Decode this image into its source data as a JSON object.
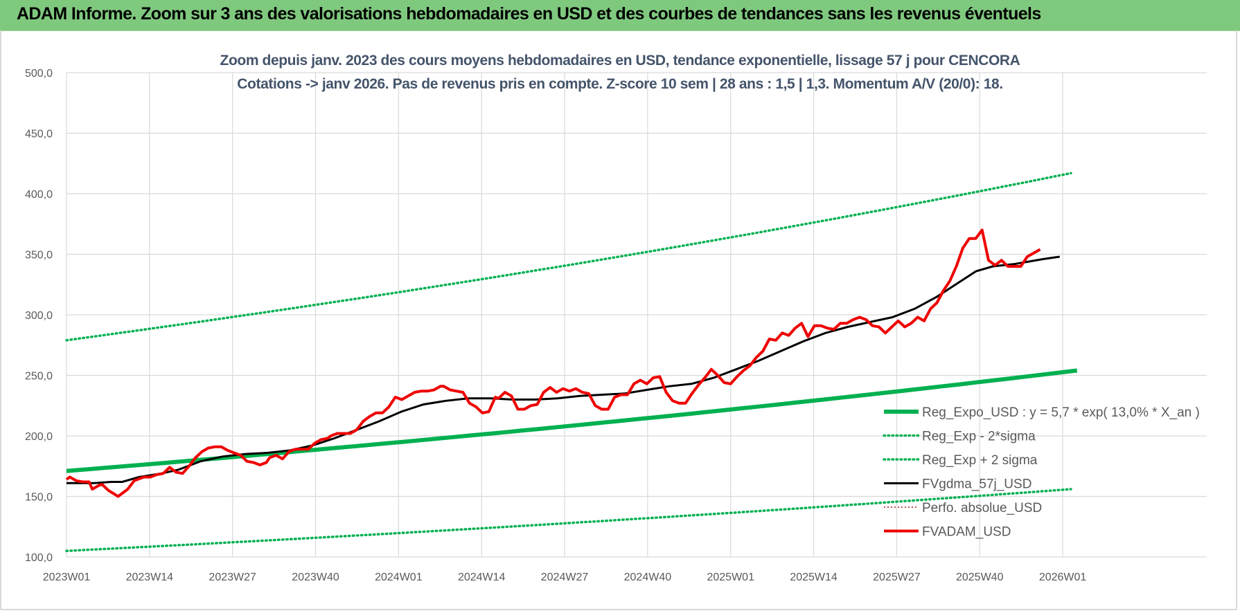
{
  "banner": {
    "text": "ADAM Informe. Zoom sur 3 ans des valorisations hebdomadaires en USD et des courbes de tendances sans les revenus éventuels"
  },
  "colors": {
    "banner_bg": "#7fc97f",
    "regexpo": "#00b050",
    "bands": "#00b050",
    "fvgdma": "#000000",
    "perfo": "#c0504d",
    "fvadam": "#ee0000"
  },
  "chart_data": {
    "type": "line",
    "title": [
      "Zoom depuis janv. 2023 des cours moyens hebdomadaires en USD, tendance exponentielle, lissage 57 j pour CENCORA",
      "Cotations -> janv 2026. Pas de revenus pris en compte. Z-score 10 sem  | 28 ans : 1,5 | 1,3. Momentum A/V (20/0): 18."
    ],
    "x_tick_labels": [
      "2023W01",
      "2023W14",
      "2023W27",
      "2023W40",
      "2024W01",
      "2024W14",
      "2024W27",
      "2024W40",
      "2025W01",
      "2025W14",
      "2025W27",
      "2025W40",
      "2026W01"
    ],
    "x_range_weeks": [
      0,
      164
    ],
    "y_tick_labels": [
      "100,0",
      "150,0",
      "200,0",
      "250,0",
      "300,0",
      "350,0",
      "400,0",
      "450,0",
      "500,0"
    ],
    "ylim": [
      100,
      500
    ],
    "legend": [
      {
        "name": "Reg_Expo_USD : y = 5,7 * exp( 13,0% *  X_an )",
        "style": "thick-solid",
        "key": "regexpo"
      },
      {
        "name": "Reg_Exp - 2*sigma",
        "style": "dotted",
        "key": "bands"
      },
      {
        "name": "Reg_Exp + 2 sigma",
        "style": "dotted",
        "key": "bands"
      },
      {
        "name": "FVgdma_57j_USD",
        "style": "solid",
        "key": "fvgdma"
      },
      {
        "name": "Perfo. absolue_USD",
        "style": "dotted-thin",
        "key": "perfo"
      },
      {
        "name": "FVADAM_USD",
        "style": "solid-red",
        "key": "fvadam"
      }
    ],
    "series": [
      {
        "name": "Reg_Expo_USD",
        "trend": {
          "start": 171,
          "end": 254
        },
        "x_range": [
          0,
          163
        ]
      },
      {
        "name": "Reg_Exp - 2*sigma",
        "trend": {
          "start": 105,
          "end": 156
        },
        "x_range": [
          0,
          162
        ]
      },
      {
        "name": "Reg_Exp + 2 sigma",
        "trend": {
          "start": 279,
          "end": 417
        },
        "x_range": [
          0,
          162
        ]
      },
      {
        "name": "FVgdma_57j_USD",
        "points": [
          [
            0,
            161
          ],
          [
            5,
            161
          ],
          [
            8,
            162
          ],
          [
            10,
            162
          ],
          [
            13,
            166
          ],
          [
            17,
            169
          ],
          [
            20,
            172
          ],
          [
            24,
            179
          ],
          [
            28,
            183
          ],
          [
            32,
            185
          ],
          [
            36,
            186
          ],
          [
            40,
            188
          ],
          [
            44,
            192
          ],
          [
            48,
            198
          ],
          [
            52,
            205
          ],
          [
            56,
            212
          ],
          [
            60,
            220
          ],
          [
            64,
            226
          ],
          [
            68,
            229
          ],
          [
            72,
            231
          ],
          [
            76,
            231
          ],
          [
            80,
            230
          ],
          [
            84,
            230
          ],
          [
            88,
            231
          ],
          [
            92,
            233
          ],
          [
            96,
            234
          ],
          [
            100,
            235
          ],
          [
            104,
            238
          ],
          [
            108,
            241
          ],
          [
            112,
            243
          ],
          [
            116,
            248
          ],
          [
            120,
            255
          ],
          [
            124,
            262
          ],
          [
            128,
            270
          ],
          [
            132,
            278
          ],
          [
            136,
            285
          ],
          [
            140,
            290
          ],
          [
            144,
            294
          ],
          [
            148,
            298
          ],
          [
            152,
            305
          ],
          [
            156,
            315
          ],
          [
            160,
            327
          ],
          [
            163,
            336
          ],
          [
            166,
            340
          ],
          [
            170,
            342
          ],
          [
            175,
            346
          ],
          [
            178,
            348
          ]
        ]
      },
      {
        "name": "FVADAM_USD",
        "points": [
          [
            0,
            164
          ],
          [
            1,
            166
          ],
          [
            3,
            163
          ],
          [
            5,
            162
          ],
          [
            7,
            162
          ],
          [
            8,
            156
          ],
          [
            10,
            159
          ],
          [
            11,
            160
          ],
          [
            13,
            155
          ],
          [
            16,
            150
          ],
          [
            19,
            156
          ],
          [
            21,
            163
          ],
          [
            24,
            166
          ],
          [
            26,
            166
          ],
          [
            28,
            168
          ],
          [
            30,
            169
          ],
          [
            32,
            174
          ],
          [
            34,
            170
          ],
          [
            36,
            169
          ],
          [
            38,
            175
          ],
          [
            40,
            182
          ],
          [
            42,
            187
          ],
          [
            44,
            190
          ],
          [
            46,
            191
          ],
          [
            48,
            191
          ],
          [
            50,
            188
          ],
          [
            52,
            186
          ],
          [
            54,
            184
          ],
          [
            56,
            179
          ],
          [
            58,
            178
          ],
          [
            60,
            176
          ],
          [
            62,
            178
          ],
          [
            63,
            182
          ],
          [
            65,
            184
          ],
          [
            67,
            181
          ],
          [
            69,
            187
          ],
          [
            71,
            189
          ],
          [
            73,
            189
          ],
          [
            75,
            189
          ],
          [
            77,
            194
          ],
          [
            79,
            197
          ],
          [
            81,
            198
          ],
          [
            82,
            200
          ],
          [
            84,
            202
          ],
          [
            86,
            202
          ],
          [
            88,
            202
          ],
          [
            90,
            205
          ],
          [
            92,
            212
          ],
          [
            94,
            216
          ],
          [
            96,
            219
          ],
          [
            98,
            219
          ],
          [
            100,
            224
          ],
          [
            102,
            232
          ],
          [
            104,
            230
          ],
          [
            106,
            233
          ],
          [
            108,
            236
          ],
          [
            110,
            237
          ],
          [
            112,
            237
          ],
          [
            114,
            238
          ],
          [
            116,
            241
          ],
          [
            117,
            241
          ],
          [
            119,
            238
          ],
          [
            121,
            237
          ],
          [
            123,
            236
          ],
          [
            125,
            227
          ],
          [
            127,
            224
          ],
          [
            129,
            219
          ],
          [
            131,
            220
          ],
          [
            133,
            232
          ],
          [
            134,
            231
          ],
          [
            136,
            236
          ],
          [
            138,
            233
          ],
          [
            140,
            222
          ],
          [
            142,
            222
          ],
          [
            144,
            225
          ],
          [
            146,
            226
          ],
          [
            148,
            236
          ],
          [
            150,
            240
          ],
          [
            152,
            236
          ],
          [
            154,
            239
          ],
          [
            156,
            237
          ],
          [
            158,
            239
          ],
          [
            160,
            236
          ],
          [
            162,
            235
          ],
          [
            164,
            225
          ],
          [
            166,
            222
          ],
          [
            168,
            222
          ],
          [
            170,
            232
          ],
          [
            172,
            234
          ],
          [
            174,
            234
          ],
          [
            176,
            243
          ],
          [
            178,
            246
          ],
          [
            180,
            243
          ],
          [
            182,
            248
          ],
          [
            184,
            249
          ],
          [
            186,
            236
          ],
          [
            188,
            229
          ],
          [
            190,
            227
          ],
          [
            192,
            227
          ],
          [
            194,
            235
          ],
          [
            196,
            242
          ],
          [
            198,
            248
          ],
          [
            200,
            255
          ],
          [
            202,
            250
          ],
          [
            204,
            244
          ],
          [
            206,
            243
          ],
          [
            208,
            249
          ],
          [
            210,
            254
          ],
          [
            212,
            258
          ],
          [
            214,
            265
          ],
          [
            216,
            270
          ],
          [
            218,
            280
          ],
          [
            220,
            279
          ],
          [
            222,
            285
          ],
          [
            224,
            283
          ],
          [
            226,
            289
          ],
          [
            228,
            293
          ],
          [
            230,
            282
          ],
          [
            232,
            291
          ],
          [
            234,
            291
          ],
          [
            236,
            289
          ],
          [
            238,
            288
          ],
          [
            240,
            293
          ],
          [
            242,
            293
          ],
          [
            244,
            296
          ],
          [
            246,
            298
          ],
          [
            248,
            296
          ],
          [
            250,
            291
          ],
          [
            252,
            290
          ],
          [
            254,
            285
          ],
          [
            256,
            290
          ],
          [
            258,
            295
          ],
          [
            260,
            290
          ],
          [
            262,
            293
          ],
          [
            264,
            298
          ],
          [
            266,
            295
          ],
          [
            268,
            305
          ],
          [
            270,
            310
          ],
          [
            272,
            320
          ],
          [
            274,
            328
          ],
          [
            276,
            340
          ],
          [
            278,
            355
          ],
          [
            280,
            363
          ],
          [
            282,
            363
          ],
          [
            284,
            370
          ],
          [
            286,
            345
          ],
          [
            288,
            341
          ],
          [
            290,
            345
          ],
          [
            292,
            340
          ],
          [
            294,
            340
          ],
          [
            296,
            340
          ],
          [
            298,
            348
          ],
          [
            300,
            351
          ],
          [
            302,
            354
          ]
        ]
      }
    ]
  }
}
